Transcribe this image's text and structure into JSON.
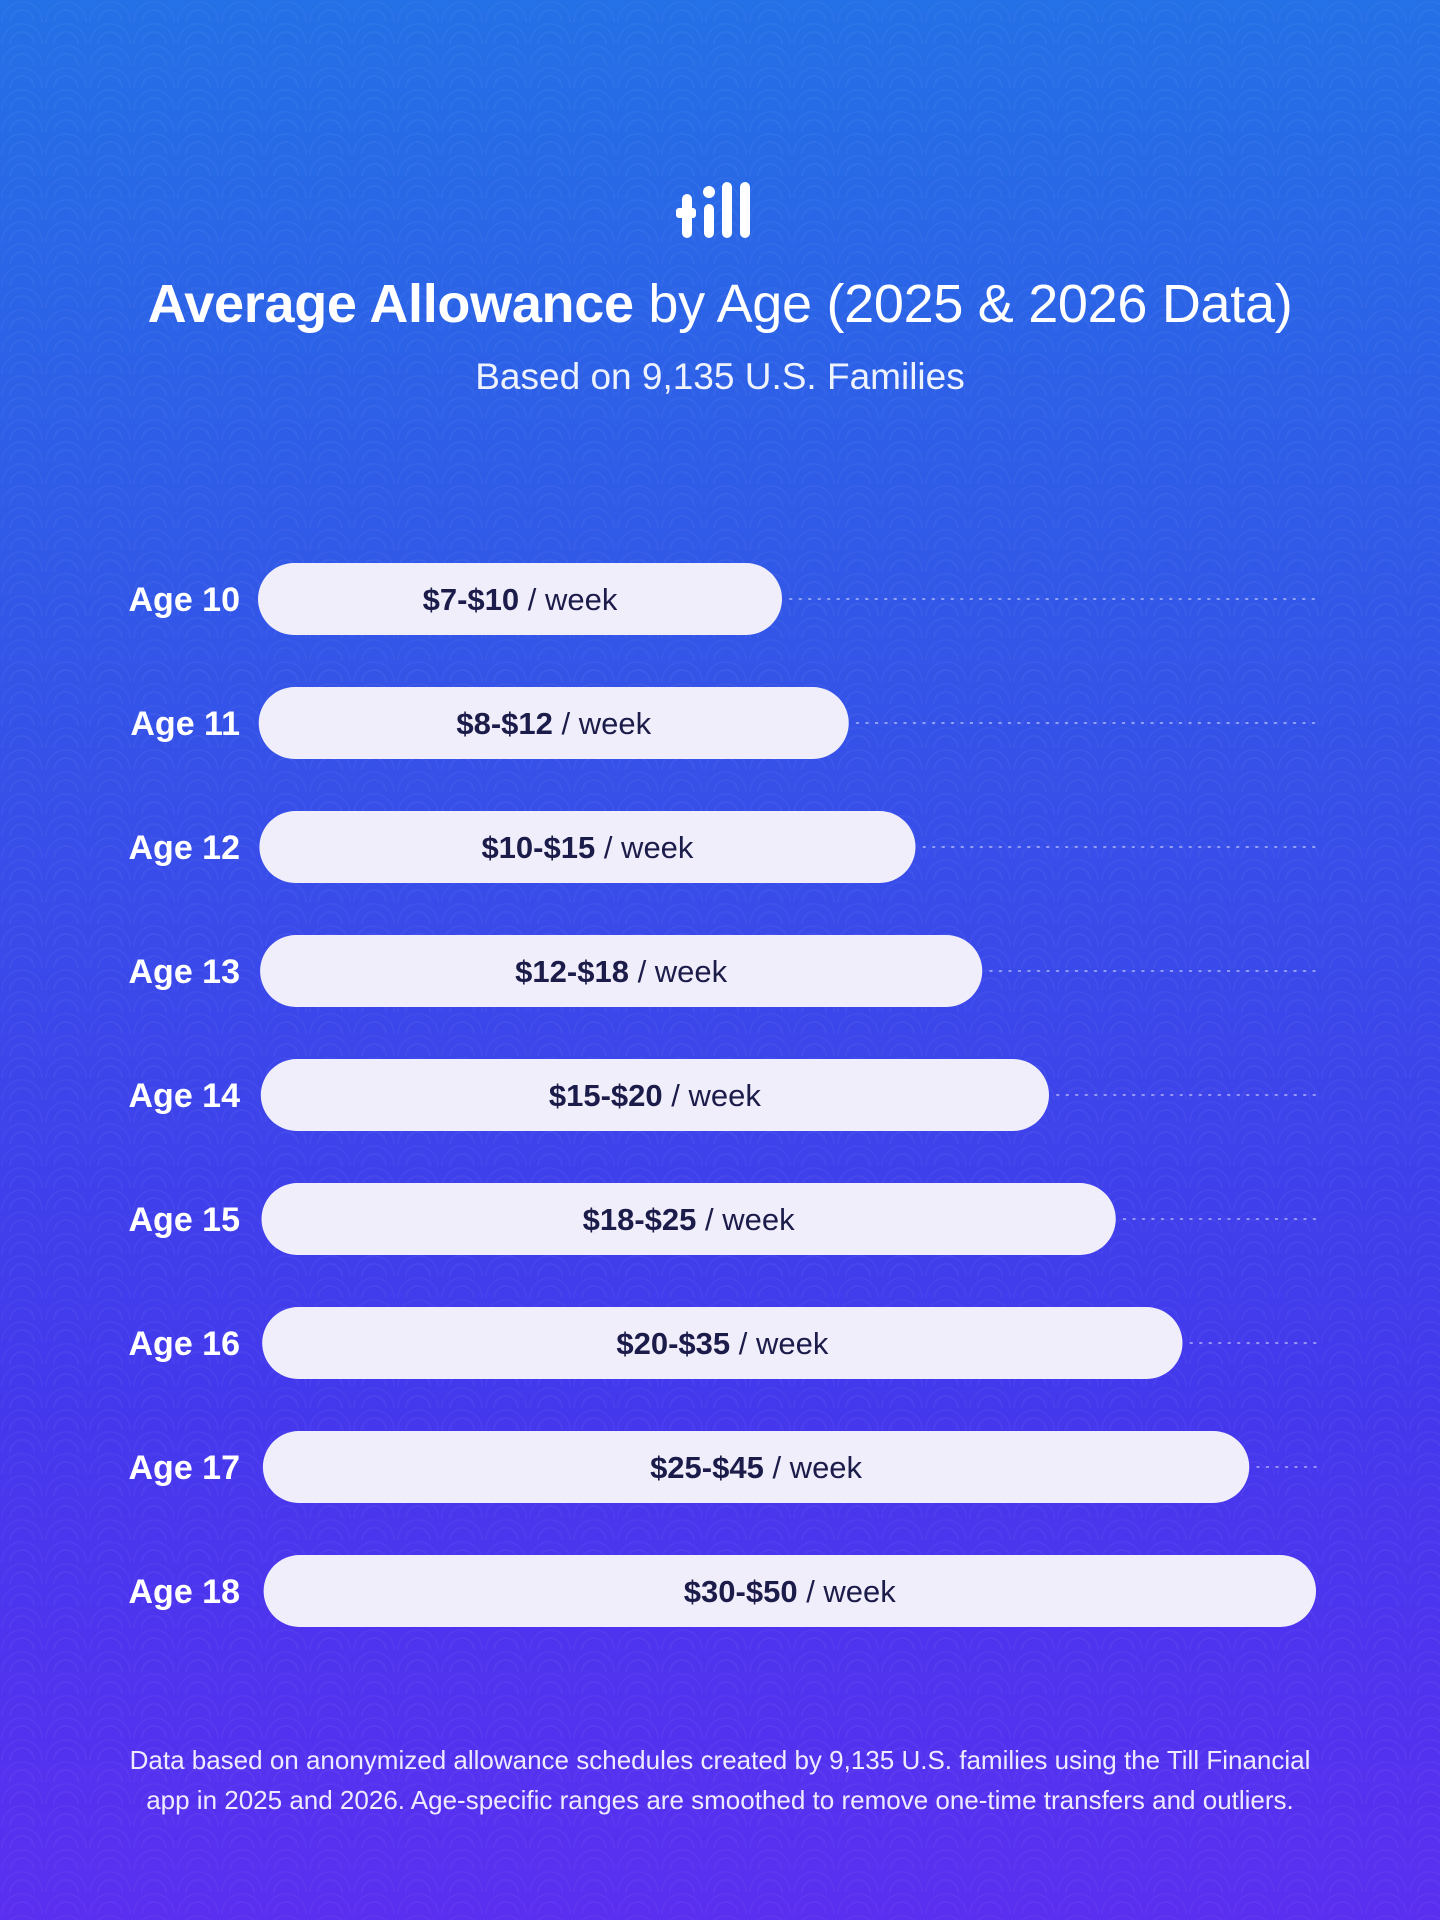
{
  "brand": {
    "logo_text": "till"
  },
  "header": {
    "title_bold": "Average Allowance",
    "title_rest": " by Age (2025 & 2026 Data)",
    "subtitle": "Based on 9,135 U.S. Families"
  },
  "chart_data": {
    "type": "bar",
    "orientation": "horizontal",
    "title": "Average Allowance by Age (2025 & 2026 Data)",
    "subtitle": "Based on 9,135 U.S. Families",
    "categories": [
      "Age 10",
      "Age 11",
      "Age 12",
      "Age 13",
      "Age 14",
      "Age 15",
      "Age 16",
      "Age 17",
      "Age 18"
    ],
    "ranges": [
      {
        "low": 7,
        "high": 10
      },
      {
        "low": 8,
        "high": 12
      },
      {
        "low": 10,
        "high": 15
      },
      {
        "low": 12,
        "high": 18
      },
      {
        "low": 15,
        "high": 20
      },
      {
        "low": 18,
        "high": 25
      },
      {
        "low": 20,
        "high": 35
      },
      {
        "low": 25,
        "high": 45
      },
      {
        "low": 30,
        "high": 50
      }
    ],
    "value_labels": [
      "$7-$10",
      "$8-$12",
      "$10-$15",
      "$12-$18",
      "$15-$20",
      "$18-$25",
      "$20-$35",
      "$25-$45",
      "$30-$50"
    ],
    "rank": [
      1,
      2,
      3,
      4,
      5,
      6,
      7,
      8,
      9
    ],
    "rank_max": 9,
    "unit_suffix": " / week",
    "grid": false
  },
  "footer": {
    "note_line1": "Data based on anonymized allowance schedules created by 9,135 U.S. families using the Till Financial",
    "note_line2": "app in 2025 and 2026. Age-specific ranges are smoothed to remove one-time transfers and outliers."
  },
  "colors": {
    "bar_fill": "#f1eefb",
    "bar_text": "#1c1c4a",
    "label_text": "#ffffff",
    "dotted_line": "rgba(255,255,255,0.45)"
  }
}
